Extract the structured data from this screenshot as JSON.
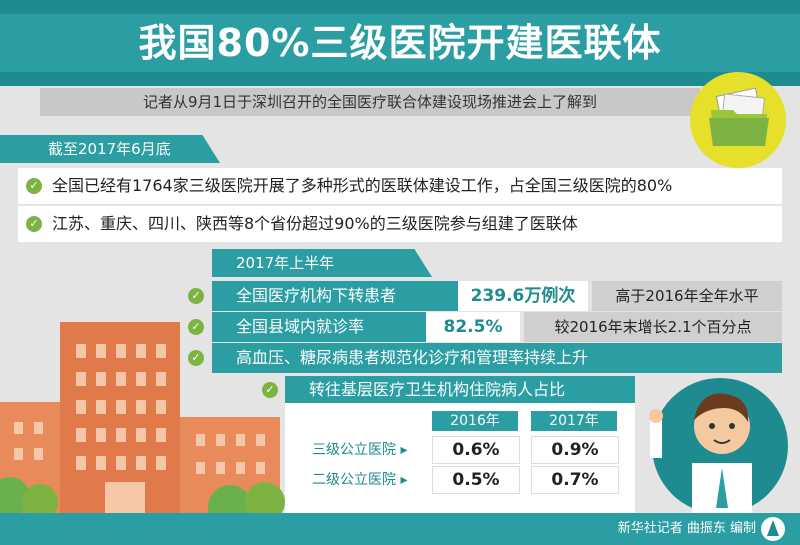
{
  "title": "我国80%三级医院开建医联体",
  "subtitle": "记者从9月1日于深圳召开的全国医疗联合体建设现场推进会上了解到",
  "section1": {
    "tab": "截至2017年6月底",
    "facts": [
      "全国已经有1764家三级医院开展了多种形式的医联体建设工作，占全国三级医院的80%",
      "江苏、重庆、四川、陕西等8个省份超过90%的三级医院参与组建了医联体"
    ]
  },
  "section2": {
    "tab": "2017年上半年",
    "rows": [
      {
        "label": "全国医疗机构下转患者",
        "value": "239.6万例次",
        "note": "高于2016年全年水平"
      },
      {
        "label": "全国县域内就诊率",
        "value": "82.5%",
        "note": "较2016年末增长2.1个百分点"
      },
      {
        "label": "高血压、糖尿病患者规范化诊疗和管理率持续上升"
      }
    ],
    "panel": {
      "title": "转往基层医疗卫生机构住院病人占比",
      "years": [
        "2016年",
        "2017年"
      ],
      "rows": [
        {
          "label": "三级公立医院",
          "values": [
            "0.6%",
            "0.9%"
          ]
        },
        {
          "label": "二级公立医院",
          "values": [
            "0.5%",
            "0.7%"
          ]
        }
      ]
    }
  },
  "footer": "新华社记者 曲振东 编制",
  "colors": {
    "teal": "#2a9ea3",
    "dark_teal": "#1d8b8f",
    "green": "#7cb342",
    "orange": "#e07a4a",
    "yellow": "#e6e02a"
  }
}
